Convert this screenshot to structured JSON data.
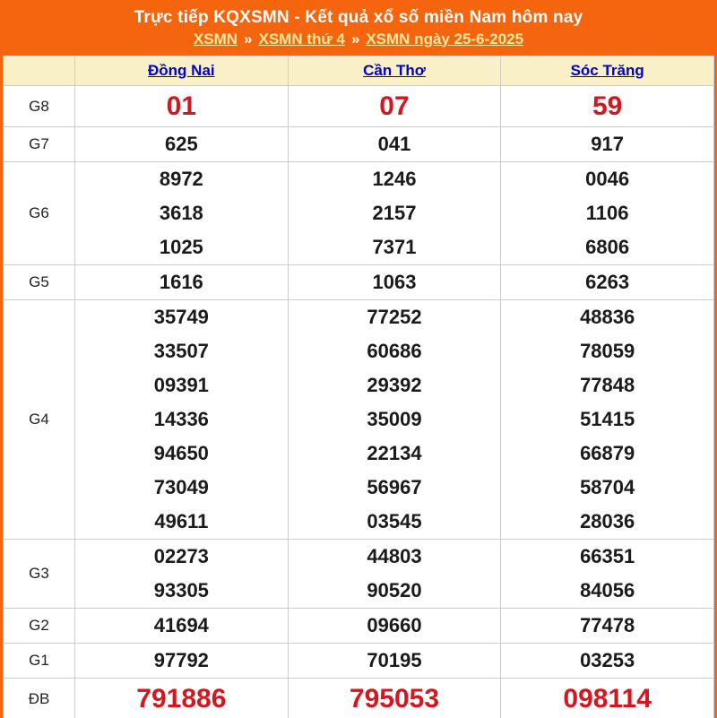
{
  "header": {
    "title": "Trực tiếp KQXSMN - Kết quả xổ số miền Nam hôm nay",
    "separator": "»",
    "breadcrumb": [
      {
        "label": "XSMN"
      },
      {
        "label": "XSMN thứ 4"
      },
      {
        "label": "XSMN ngày 25-6-2025"
      }
    ]
  },
  "table": {
    "provinces": [
      "Đồng Nai",
      "Cần Thơ",
      "Sóc Trăng"
    ],
    "rows": [
      {
        "label": "G8",
        "highlight": true,
        "values": [
          [
            "01"
          ],
          [
            "07"
          ],
          [
            "59"
          ]
        ]
      },
      {
        "label": "G7",
        "highlight": false,
        "values": [
          [
            "625"
          ],
          [
            "041"
          ],
          [
            "917"
          ]
        ]
      },
      {
        "label": "G6",
        "highlight": false,
        "values": [
          [
            "8972",
            "3618",
            "1025"
          ],
          [
            "1246",
            "2157",
            "7371"
          ],
          [
            "0046",
            "1106",
            "6806"
          ]
        ]
      },
      {
        "label": "G5",
        "highlight": false,
        "values": [
          [
            "1616"
          ],
          [
            "1063"
          ],
          [
            "6263"
          ]
        ]
      },
      {
        "label": "G4",
        "highlight": false,
        "values": [
          [
            "35749",
            "33507",
            "09391",
            "14336",
            "94650",
            "73049",
            "49611"
          ],
          [
            "77252",
            "60686",
            "29392",
            "35009",
            "22134",
            "56967",
            "03545"
          ],
          [
            "48836",
            "78059",
            "77848",
            "51415",
            "66879",
            "58704",
            "28036"
          ]
        ]
      },
      {
        "label": "G3",
        "highlight": false,
        "values": [
          [
            "02273",
            "93305"
          ],
          [
            "44803",
            "90520"
          ],
          [
            "66351",
            "84056"
          ]
        ]
      },
      {
        "label": "G2",
        "highlight": false,
        "values": [
          [
            "41694"
          ],
          [
            "09660"
          ],
          [
            "77478"
          ]
        ]
      },
      {
        "label": "G1",
        "highlight": false,
        "values": [
          [
            "97792"
          ],
          [
            "70195"
          ],
          [
            "03253"
          ]
        ]
      },
      {
        "label": "ĐB",
        "highlight": true,
        "values": [
          [
            "791886"
          ],
          [
            "795053"
          ],
          [
            "098114"
          ]
        ]
      }
    ]
  },
  "colors": {
    "banner_orange": "#f4650e",
    "header_cream": "#faf0c8",
    "link_blue": "#0000cc",
    "highlight_red": "#d6161f",
    "number_black": "#1b1b1b",
    "breadcrumb_gold": "#fde8a0"
  }
}
